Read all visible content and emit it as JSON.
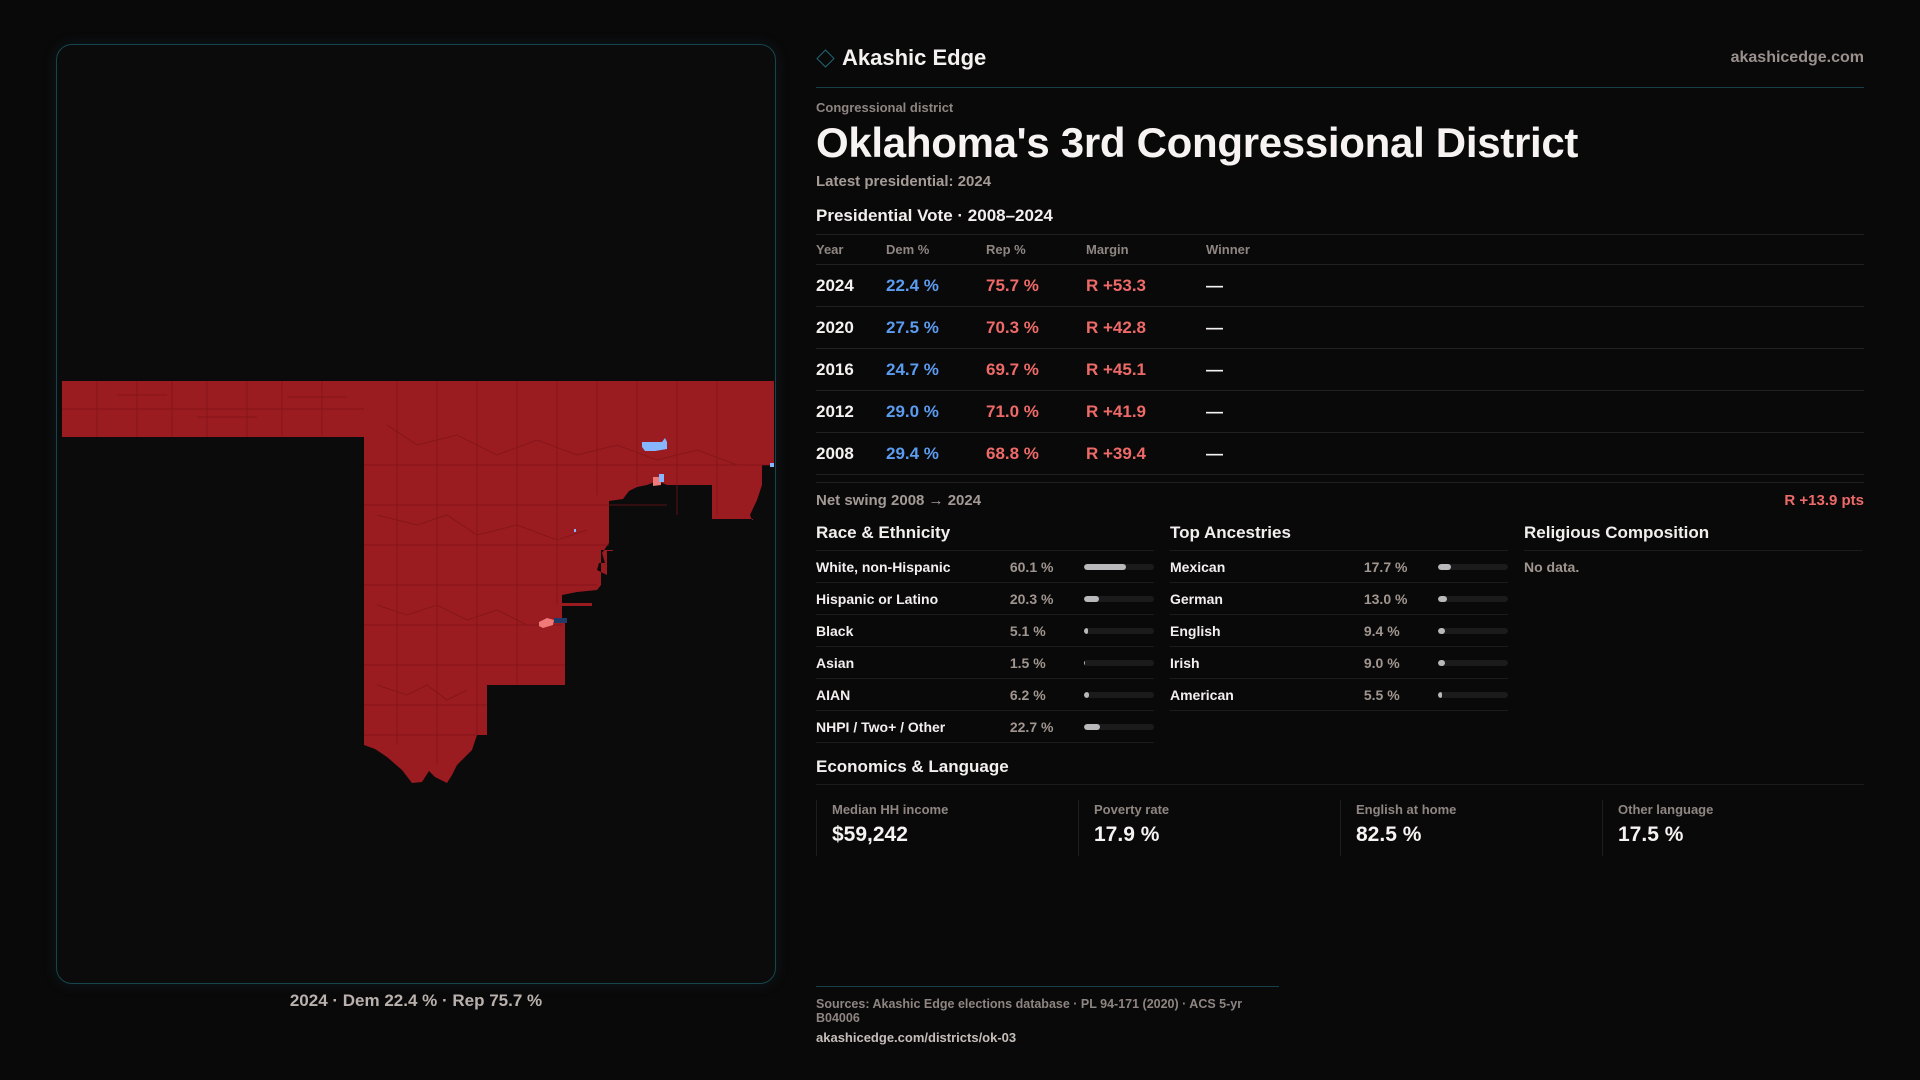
{
  "brand": {
    "name": "Akashic Edge",
    "icon": "diamond-outline-icon",
    "site": "akashicedge.com",
    "accent": "#1f6670"
  },
  "district": {
    "eyebrow": "Congressional district",
    "title": "Oklahoma's 3rd Congressional District",
    "subtitle": "Latest presidential: 2024"
  },
  "colors": {
    "dem": "#5b9cf0",
    "rep": "#ee6a68",
    "map_rep": "#9a1b20",
    "map_dem_light": "#85b6ff",
    "map_rep_light": "#f07a78",
    "map_dem_dark": "#1f3a66"
  },
  "vote": {
    "title": "Presidential Vote · 2008–2024",
    "headers": [
      "Year",
      "Dem %",
      "Rep %",
      "Margin",
      "Winner"
    ],
    "rows": [
      {
        "year": "2024",
        "dem": "22.4 %",
        "rep": "75.7 %",
        "margin": "R +53.3",
        "winner": "—"
      },
      {
        "year": "2020",
        "dem": "27.5 %",
        "rep": "70.3 %",
        "margin": "R +42.8",
        "winner": "—"
      },
      {
        "year": "2016",
        "dem": "24.7 %",
        "rep": "69.7 %",
        "margin": "R +45.1",
        "winner": "—"
      },
      {
        "year": "2012",
        "dem": "29.0 %",
        "rep": "71.0 %",
        "margin": "R +41.9",
        "winner": "—"
      },
      {
        "year": "2008",
        "dem": "29.4 %",
        "rep": "68.8 %",
        "margin": "R +39.4",
        "winner": "—"
      }
    ],
    "swing_label": "Net swing 2008 → 2024",
    "swing_value": "R +13.9 pts"
  },
  "race": {
    "title": "Race & Ethnicity",
    "items": [
      {
        "label": "White, non-Hispanic",
        "pct": "60.1 %",
        "value": 60.1
      },
      {
        "label": "Hispanic or Latino",
        "pct": "20.3 %",
        "value": 20.3
      },
      {
        "label": "Black",
        "pct": "5.1 %",
        "value": 5.1
      },
      {
        "label": "Asian",
        "pct": "1.5 %",
        "value": 1.5
      },
      {
        "label": "AIAN",
        "pct": "6.2 %",
        "value": 6.2
      },
      {
        "label": "NHPI / Two+ / Other",
        "pct": "22.7 %",
        "value": 22.7
      }
    ]
  },
  "ancestry": {
    "title": "Top Ancestries",
    "items": [
      {
        "label": "Mexican",
        "pct": "17.7 %",
        "value": 17.7
      },
      {
        "label": "German",
        "pct": "13.0 %",
        "value": 13.0
      },
      {
        "label": "English",
        "pct": "9.4 %",
        "value": 9.4
      },
      {
        "label": "Irish",
        "pct": "9.0 %",
        "value": 9.0
      },
      {
        "label": "American",
        "pct": "5.5 %",
        "value": 5.5
      }
    ]
  },
  "religion": {
    "title": "Religious Composition",
    "empty": "No data."
  },
  "economics": {
    "title": "Economics & Language",
    "items": [
      {
        "label": "Median HH income",
        "value": "$59,242"
      },
      {
        "label": "Poverty rate",
        "value": "17.9 %"
      },
      {
        "label": "English at home",
        "value": "82.5 %"
      },
      {
        "label": "Other language",
        "value": "17.5 %"
      }
    ]
  },
  "map": {
    "caption": "2024 · Dem 22.4 % · Rep 75.7 %"
  },
  "footer": {
    "sources": "Sources: Akashic Edge elections database · PL 94-171 (2020) · ACS 5-yr B04006",
    "url": "akashicedge.com/districts/ok-03"
  }
}
